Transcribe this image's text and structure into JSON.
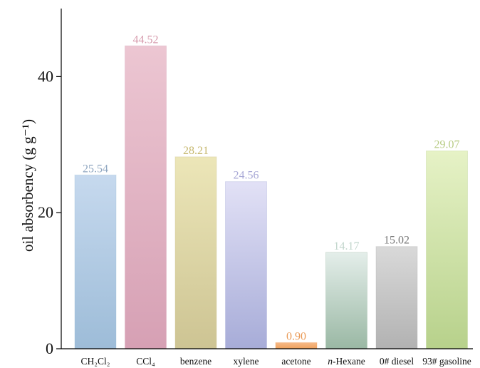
{
  "chart_data": {
    "type": "bar",
    "title": "",
    "ylabel": "oil absorbency (g g⁻¹)",
    "xlabel": "",
    "ylim": [
      0,
      50
    ],
    "yticks": [
      0,
      20,
      40
    ],
    "ytick_labels": [
      "0",
      "20",
      "40"
    ],
    "categories": [
      "CH₂Cl₂",
      "CCl₄",
      "benzene",
      "xylene",
      "acetone",
      "n-Hexane",
      "0# diesel",
      "93# gasoline"
    ],
    "values": [
      25.54,
      44.52,
      28.21,
      24.56,
      0.9,
      14.17,
      15.02,
      29.07
    ],
    "value_labels": [
      "25.54",
      "44.52",
      "28.21",
      "24.56",
      "0.90",
      "14.17",
      "15.02",
      "29.07"
    ],
    "bar_colors_top": [
      "#c6d9ee",
      "#ecc6d2",
      "#ece6b8",
      "#e2e1f6",
      "#f6b988",
      "#e4eeea",
      "#d9d9d9",
      "#e6f2c6"
    ],
    "bar_colors_bottom": [
      "#9dbcd8",
      "#d6a0b4",
      "#cdc493",
      "#a7acd8",
      "#f0a25e",
      "#9ab8a4",
      "#b2b2b2",
      "#b7d18b"
    ],
    "label_colors": [
      "#8fa6c0",
      "#d69aac",
      "#c6b86f",
      "#a9a9d6",
      "#ea9a56",
      "#c2d6cc",
      "#777777",
      "#b8cc84"
    ],
    "grid": false,
    "legend": "none"
  }
}
